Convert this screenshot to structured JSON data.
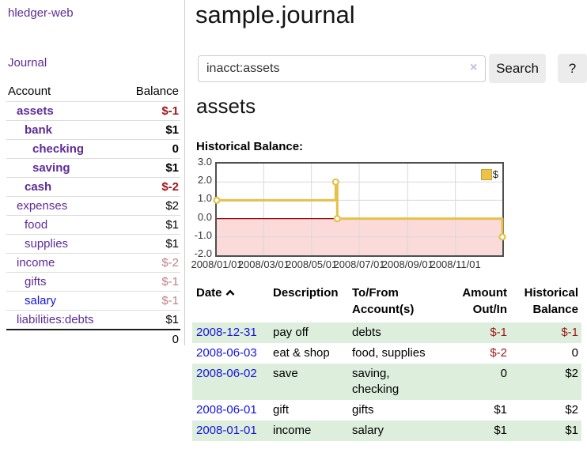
{
  "sidebar": {
    "app_title": "hledger-web",
    "journal_label": "Journal",
    "table": {
      "headers": {
        "account": "Account",
        "balance": "Balance"
      },
      "accounts": [
        {
          "name": "assets",
          "depth": 1,
          "emph": true,
          "balance": "$-1",
          "balance_tone": "neg-strong",
          "link_tone": "visited"
        },
        {
          "name": "bank",
          "depth": 2,
          "emph": true,
          "balance": "$1",
          "balance_tone": "normal",
          "link_tone": "visited"
        },
        {
          "name": "checking",
          "depth": 3,
          "emph": true,
          "balance": "0",
          "balance_tone": "normal",
          "link_tone": "visited"
        },
        {
          "name": "saving",
          "depth": 3,
          "emph": true,
          "balance": "$1",
          "balance_tone": "normal",
          "link_tone": "visited"
        },
        {
          "name": "cash",
          "depth": 2,
          "emph": true,
          "balance": "$-2",
          "balance_tone": "neg-strong",
          "link_tone": "visited"
        },
        {
          "name": "expenses",
          "depth": 1,
          "emph": false,
          "balance": "$2",
          "balance_tone": "normal",
          "link_tone": "visited"
        },
        {
          "name": "food",
          "depth": 2,
          "emph": false,
          "balance": "$1",
          "balance_tone": "normal",
          "link_tone": "visited"
        },
        {
          "name": "supplies",
          "depth": 2,
          "emph": false,
          "balance": "$1",
          "balance_tone": "normal",
          "link_tone": "visited"
        },
        {
          "name": "income",
          "depth": 1,
          "emph": false,
          "balance": "$-2",
          "balance_tone": "neg-faded",
          "link_tone": "visited"
        },
        {
          "name": "gifts",
          "depth": 2,
          "emph": false,
          "balance": "$-1",
          "balance_tone": "neg-faded",
          "link_tone": "visited"
        },
        {
          "name": "salary",
          "depth": 2,
          "emph": false,
          "balance": "$-1",
          "balance_tone": "neg-faded",
          "link_tone": "unvisited"
        },
        {
          "name": "liabilities:debts",
          "depth": 1,
          "emph": false,
          "balance": "$1",
          "balance_tone": "normal",
          "link_tone": "visited"
        }
      ],
      "total": "0"
    }
  },
  "header": {
    "title": "sample.journal"
  },
  "search": {
    "query": "inacct:assets",
    "clear_icon": "×",
    "button_label": "Search",
    "help_label": "?"
  },
  "account_page": {
    "heading": "assets",
    "chart_label": "Historical Balance:"
  },
  "chart_data": {
    "type": "line",
    "subtype": "step",
    "title": "Historical Balance",
    "xlabel": "",
    "ylabel": "",
    "ylim": [
      -2,
      3
    ],
    "x_range": [
      "2008-01-01",
      "2008-12-31"
    ],
    "grid": true,
    "legend_position": "top-right",
    "legend": [
      {
        "label": "$",
        "color": "#e6c04a"
      }
    ],
    "series": [
      {
        "name": "$",
        "points": [
          {
            "date": "2008-01-01",
            "value": 1
          },
          {
            "date": "2008-06-01",
            "value": 2
          },
          {
            "date": "2008-06-03",
            "value": 0
          },
          {
            "date": "2008-12-31",
            "value": -1
          }
        ]
      }
    ],
    "y_ticks": [
      {
        "label": "3.0",
        "value": 3
      },
      {
        "label": "2.0",
        "value": 2
      },
      {
        "label": "1.0",
        "value": 1
      },
      {
        "label": "0.0",
        "value": 0
      },
      {
        "label": "-1.0",
        "value": -1
      },
      {
        "label": "-2.0",
        "value": -2
      }
    ],
    "x_ticks": [
      {
        "label": "2008/01/01",
        "date": "2008-01-01"
      },
      {
        "label": "2008/03/01",
        "date": "2008-03-01"
      },
      {
        "label": "2008/05/01",
        "date": "2008-05-01"
      },
      {
        "label": "2008/07/01",
        "date": "2008-07-01"
      },
      {
        "label": "2008/09/01",
        "date": "2008-09-01"
      },
      {
        "label": "2008/11/01",
        "date": "2008-11-01"
      }
    ],
    "line_color": "#e6c04a",
    "negative_fill": "#fbdada",
    "zero_line_color": "#990000"
  },
  "transactions": {
    "headers": {
      "date": "Date",
      "description": "Description",
      "tofrom": "To/From Account(s)",
      "amount": "Amount Out/In",
      "balance": "Historical Balance"
    },
    "rows": [
      {
        "date": "2008-12-31",
        "description": "pay off",
        "accounts": "debts",
        "amount": "$-1",
        "amount_tone": "neg",
        "balance": "$-1",
        "balance_tone": "neg"
      },
      {
        "date": "2008-06-03",
        "description": "eat & shop",
        "accounts": "food, supplies",
        "amount": "$-2",
        "amount_tone": "neg",
        "balance": "0",
        "balance_tone": "normal"
      },
      {
        "date": "2008-06-02",
        "description": "save",
        "accounts": "saving, checking",
        "amount": "0",
        "amount_tone": "normal",
        "balance": "$2",
        "balance_tone": "normal"
      },
      {
        "date": "2008-06-01",
        "description": "gift",
        "accounts": "gifts",
        "amount": "$1",
        "amount_tone": "normal",
        "balance": "$2",
        "balance_tone": "normal"
      },
      {
        "date": "2008-01-01",
        "description": "income",
        "accounts": "salary",
        "amount": "$1",
        "amount_tone": "normal",
        "balance": "$1",
        "balance_tone": "normal"
      }
    ]
  }
}
